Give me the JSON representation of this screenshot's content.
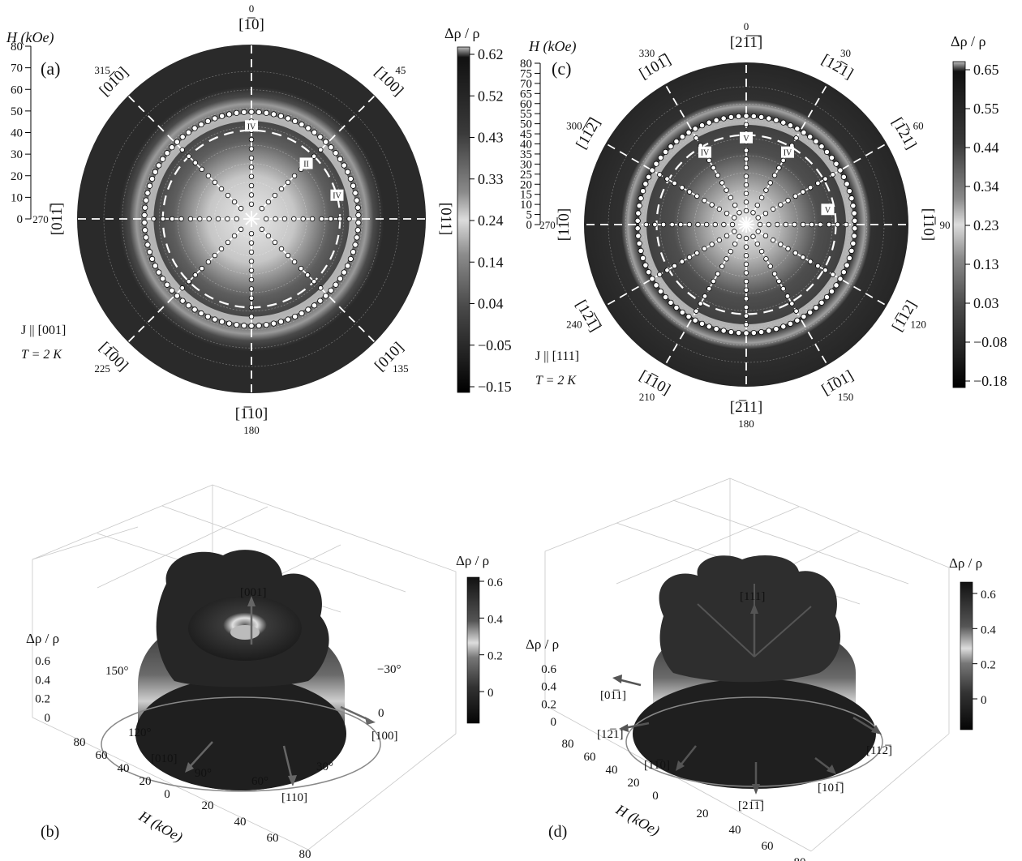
{
  "figure": {
    "panels": {
      "a": {
        "label": "(a)",
        "h_axis_label": "H (kOe)",
        "h_ticks": [
          "0",
          "10",
          "20",
          "30",
          "40",
          "50",
          "60",
          "70",
          "80"
        ],
        "angle_labels": [
          {
            "angle": 0,
            "text": "0",
            "dir": "[1̅0]"
          },
          {
            "angle": 45,
            "text": "45",
            "dir": "[100]"
          },
          {
            "angle": 90,
            "text": "90",
            "dir": "[011]"
          },
          {
            "angle": 135,
            "text": "135",
            "dir": "[010]"
          },
          {
            "angle": 180,
            "text": "180",
            "dir": "[1̅10]"
          },
          {
            "angle": 225,
            "text": "225",
            "dir": "[1̅00]"
          },
          {
            "angle": 270,
            "text": "270",
            "dir": "[011̅]"
          },
          {
            "angle": 315,
            "text": "315",
            "dir": "[01̅0]"
          }
        ],
        "region_tags": [
          {
            "text": "IV",
            "angle": 0
          },
          {
            "text": "II",
            "angle": 45
          },
          {
            "text": "IV",
            "angle": 75
          }
        ],
        "current": "J || [001]",
        "temp": "T = 2 K",
        "cbar_label": "Δρ / ρ",
        "cbar_ticks": [
          "0.62",
          "0.52",
          "0.43",
          "0.33",
          "0.24",
          "0.14",
          "0.04",
          "−0.05",
          "−0.15"
        ]
      },
      "c": {
        "label": "(c)",
        "h_axis_label": "H (kOe)",
        "h_ticks": [
          "0",
          "5",
          "10",
          "15",
          "20",
          "25",
          "30",
          "35",
          "40",
          "45",
          "50",
          "55",
          "60",
          "65",
          "70",
          "75",
          "80"
        ],
        "angle_labels": [
          {
            "angle": 0,
            "text": "0",
            "dir": "[21̅1̅]"
          },
          {
            "angle": 30,
            "text": "30",
            "dir": "[12̅1]"
          },
          {
            "angle": 60,
            "text": "60",
            "dir": "[1̅21]"
          },
          {
            "angle": 90,
            "text": "90",
            "dir": "[1̅10]"
          },
          {
            "angle": 120,
            "text": "120",
            "dir": "[1̅12]"
          },
          {
            "angle": 150,
            "text": "150",
            "dir": "[1̅01]"
          },
          {
            "angle": 180,
            "text": "180",
            "dir": "[2̅11]"
          },
          {
            "angle": 210,
            "text": "210",
            "dir": "[1̅10]"
          },
          {
            "angle": 240,
            "text": "240",
            "dir": "[12̅1̅]"
          },
          {
            "angle": 270,
            "text": "270",
            "dir": "[11̅0]"
          },
          {
            "angle": 300,
            "text": "300",
            "dir": "[11̅2̅]"
          },
          {
            "angle": 330,
            "text": "330",
            "dir": "[101̅]"
          }
        ],
        "region_tags": [
          {
            "text": "IV",
            "angle": 330
          },
          {
            "text": "V",
            "angle": 0
          },
          {
            "text": "IV",
            "angle": 30
          },
          {
            "text": "V",
            "angle": 80
          }
        ],
        "current": "J || [111]",
        "temp": "T = 2 K",
        "cbar_label": "Δρ / ρ",
        "cbar_ticks": [
          "0.65",
          "0.55",
          "0.44",
          "0.34",
          "0.23",
          "0.13",
          "0.03",
          "−0.08",
          "−0.18"
        ]
      },
      "b": {
        "label": "(b)",
        "z_label": "Δρ / ρ",
        "z_ticks": [
          "0.6",
          "0.4",
          "0.2",
          "0"
        ],
        "h_label": "H (kOe)",
        "h_ticks_left": [
          "80",
          "60",
          "40",
          "20",
          "0"
        ],
        "h_ticks_bottom": [
          "20",
          "40",
          "60",
          "80"
        ],
        "angle_ticks": [
          "150°",
          "120°",
          "90°",
          "60°",
          "30°",
          "−30°",
          "0"
        ],
        "dirs": [
          "[001]",
          "[010]",
          "[110]",
          "[100]"
        ],
        "cbar_label": "Δρ / ρ",
        "cbar_ticks": [
          "0.6",
          "0.4",
          "0.2",
          "0"
        ]
      },
      "d": {
        "label": "(d)",
        "z_label": "Δρ / ρ",
        "z_ticks": [
          "0.6",
          "0.4",
          "0.2",
          "0"
        ],
        "h_label": "H (kOe)",
        "h_ticks_left": [
          "80",
          "60",
          "40",
          "20",
          "0"
        ],
        "h_ticks_bottom": [
          "20",
          "40",
          "60",
          "80"
        ],
        "dirs": [
          "[111]",
          "[01̅1]",
          "[12̅1]",
          "[11̅0]",
          "[21̅1̅]",
          "[101̅]",
          "[112̅]"
        ],
        "cbar_label": "Δρ / ρ",
        "cbar_ticks": [
          "0.6",
          "0.4",
          "0.2",
          "0"
        ]
      }
    }
  },
  "chart_data": [
    {
      "type": "heatmap",
      "panel": "(a)",
      "projection": "polar",
      "angle_range_deg": [
        0,
        360
      ],
      "radius": "H (kOe)",
      "rlim": [
        0,
        80
      ],
      "value": "Δρ / ρ",
      "zlim": [
        -0.15,
        0.62
      ],
      "colorbar_ticks": [
        0.62,
        0.52,
        0.43,
        0.33,
        0.24,
        0.14,
        0.04,
        -0.05,
        -0.15
      ],
      "ring_H": 55,
      "dashed_circle_H": 48
    },
    {
      "type": "heatmap",
      "panel": "(c)",
      "projection": "polar",
      "angle_range_deg": [
        0,
        360
      ],
      "radius": "H (kOe)",
      "rlim": [
        0,
        80
      ],
      "value": "Δρ / ρ",
      "zlim": [
        -0.18,
        0.65
      ],
      "colorbar_ticks": [
        0.65,
        0.55,
        0.44,
        0.34,
        0.23,
        0.13,
        0.03,
        -0.08,
        -0.18
      ],
      "ring_H": 60,
      "dashed_circle_H": 52
    },
    {
      "type": "heatmap",
      "panel": "(b)",
      "projection": "3d-surface",
      "rlim": [
        0,
        80
      ],
      "zlim": [
        0,
        0.6
      ],
      "colorbar_ticks": [
        0.6,
        0.4,
        0.2,
        0
      ]
    },
    {
      "type": "heatmap",
      "panel": "(d)",
      "projection": "3d-surface",
      "rlim": [
        0,
        80
      ],
      "zlim": [
        0,
        0.6
      ],
      "colorbar_ticks": [
        0.6,
        0.4,
        0.2,
        0
      ]
    }
  ]
}
